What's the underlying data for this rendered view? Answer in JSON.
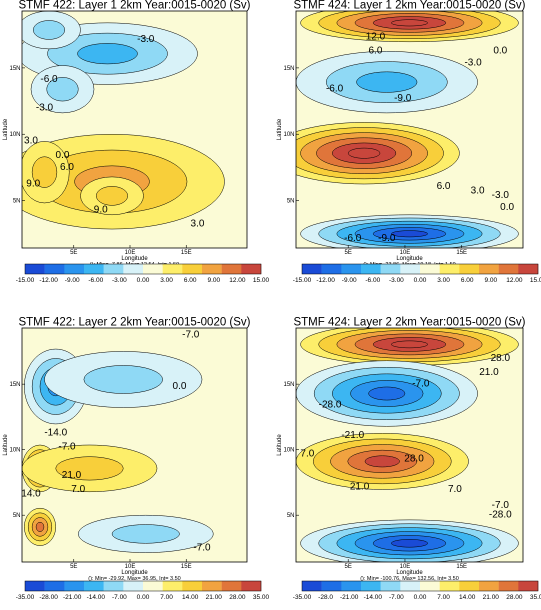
{
  "chart_data": [
    {
      "type": "heatmap",
      "title": "STMF 422: Layer 1 2km Year:0015-0020 (Sv)",
      "xlabel": "Longitude",
      "ylabel": "Latitude",
      "xticks": [
        "5E",
        "10E",
        "15E"
      ],
      "yticks": [
        "15N",
        "10N",
        "5N"
      ],
      "colorbar": [
        "-15.00",
        "-12.00",
        "-9.00",
        "-6.00",
        "-3.00",
        "0.00",
        "3.00",
        "6.00",
        "9.00",
        "12.00",
        "15.00"
      ],
      "stats": "(): Min= -7.86, Max= 12.54, Int= 1.50",
      "contour_labels": [
        "-3.0",
        "-6.0",
        "-3.0",
        "3.0",
        "0.0",
        "9.0",
        "9.0",
        "6.0",
        "3.0"
      ],
      "field": [
        {
          "sign": "neg",
          "x": 0.38,
          "y": 0.82,
          "rx": 0.4,
          "ry": 0.13,
          "amp": 0.45
        },
        {
          "sign": "neg",
          "x": 0.12,
          "y": 0.92,
          "rx": 0.14,
          "ry": 0.08,
          "amp": 0.25
        },
        {
          "sign": "neg",
          "x": 0.18,
          "y": 0.67,
          "rx": 0.14,
          "ry": 0.1,
          "amp": 0.25
        },
        {
          "sign": "pos",
          "x": 0.4,
          "y": 0.28,
          "rx": 0.5,
          "ry": 0.2,
          "amp": 0.45
        },
        {
          "sign": "pos",
          "x": 0.1,
          "y": 0.32,
          "rx": 0.11,
          "ry": 0.13,
          "amp": 0.4
        },
        {
          "sign": "pos",
          "x": 0.4,
          "y": 0.22,
          "rx": 0.14,
          "ry": 0.08,
          "amp": 0.35
        }
      ]
    },
    {
      "type": "heatmap",
      "title": "STMF 424: Layer 1 2km Year:0015-0020 (Sv)",
      "xlabel": "Longitude",
      "ylabel": "Latitude",
      "xticks": [
        "5E",
        "10E",
        "15E"
      ],
      "yticks": [
        "15N",
        "10N",
        "5N"
      ],
      "colorbar": [
        "-15.00",
        "-12.00",
        "-9.00",
        "-6.00",
        "-3.00",
        "0.00",
        "3.00",
        "6.00",
        "9.00",
        "12.00",
        "15.00"
      ],
      "stats": "(): Min= -23.86, Max= 19.18, Int= 1.50",
      "contour_labels": [
        "12.0",
        "6.0",
        "-3.0",
        "0.0",
        "-6.0",
        "-9.0",
        "6.0",
        "3.0",
        "0.0",
        "-3.0",
        "-6.0",
        "-9.0"
      ],
      "field": [
        {
          "sign": "pos",
          "x": 0.5,
          "y": 0.95,
          "rx": 0.48,
          "ry": 0.08,
          "amp": 1.0
        },
        {
          "sign": "neg",
          "x": 0.4,
          "y": 0.7,
          "rx": 0.4,
          "ry": 0.13,
          "amp": 0.55
        },
        {
          "sign": "pos",
          "x": 0.3,
          "y": 0.4,
          "rx": 0.42,
          "ry": 0.13,
          "amp": 1.0
        },
        {
          "sign": "neg",
          "x": 0.5,
          "y": 0.06,
          "rx": 0.48,
          "ry": 0.08,
          "amp": 1.0
        }
      ]
    },
    {
      "type": "heatmap",
      "title": "STMF 422: Layer 2 2km Year:0015-0020 (Sv)",
      "xlabel": "Longitude",
      "ylabel": "Latitude",
      "xticks": [
        "5E",
        "10E",
        "15E"
      ],
      "yticks": [
        "15N",
        "10N",
        "5N"
      ],
      "colorbar": [
        "-35.00",
        "-28.00",
        "-21.00",
        "-14.00",
        "-7.00",
        "0.00",
        "7.00",
        "14.00",
        "21.00",
        "28.00",
        "35.00"
      ],
      "stats": "(): Min= -29.92, Max= 36.95, Int= 3.50",
      "contour_labels": [
        "-7.0",
        "0.0",
        "-14.0",
        "-7.0",
        "21.0",
        "14.0",
        "7.0",
        "-7.0"
      ],
      "field": [
        {
          "sign": "neg",
          "x": 0.15,
          "y": 0.75,
          "rx": 0.14,
          "ry": 0.16,
          "amp": 0.6
        },
        {
          "sign": "neg",
          "x": 0.45,
          "y": 0.78,
          "rx": 0.35,
          "ry": 0.12,
          "amp": 0.3
        },
        {
          "sign": "pos",
          "x": 0.08,
          "y": 0.4,
          "rx": 0.08,
          "ry": 0.1,
          "amp": 0.8
        },
        {
          "sign": "pos",
          "x": 0.3,
          "y": 0.4,
          "rx": 0.3,
          "ry": 0.1,
          "amp": 0.35
        },
        {
          "sign": "pos",
          "x": 0.08,
          "y": 0.15,
          "rx": 0.07,
          "ry": 0.08,
          "amp": 0.6
        },
        {
          "sign": "neg",
          "x": 0.55,
          "y": 0.12,
          "rx": 0.3,
          "ry": 0.08,
          "amp": 0.15
        }
      ]
    },
    {
      "type": "heatmap",
      "title": "STMF 424: Layer 2 2km Year:0015-0020 (Sv)",
      "xlabel": "Longitude",
      "ylabel": "Latitude",
      "xticks": [
        "5E",
        "10E",
        "15E"
      ],
      "yticks": [
        "15N",
        "10N",
        "5N"
      ],
      "colorbar": [
        "-35.00",
        "-28.0",
        "-21.00",
        "-14.00",
        "-7.00",
        "0.00",
        "7.00",
        "14.00",
        "21.00",
        "28.00",
        "35.00"
      ],
      "stats": "(): Min= -100.76, Max= 132.56, Int= 3.50",
      "contour_labels": [
        "28.0",
        "21.0",
        "-7.0",
        "-28.0",
        "-21.0",
        "7.0",
        "28.0",
        "21.0",
        "7.0",
        "-7.0",
        "-28.0"
      ],
      "field": [
        {
          "sign": "pos",
          "x": 0.5,
          "y": 0.93,
          "rx": 0.48,
          "ry": 0.09,
          "amp": 1.0
        },
        {
          "sign": "neg",
          "x": 0.4,
          "y": 0.72,
          "rx": 0.4,
          "ry": 0.14,
          "amp": 0.8
        },
        {
          "sign": "pos",
          "x": 0.38,
          "y": 0.43,
          "rx": 0.38,
          "ry": 0.12,
          "amp": 0.8
        },
        {
          "sign": "neg",
          "x": 0.5,
          "y": 0.08,
          "rx": 0.48,
          "ry": 0.1,
          "amp": 1.0
        }
      ]
    }
  ]
}
